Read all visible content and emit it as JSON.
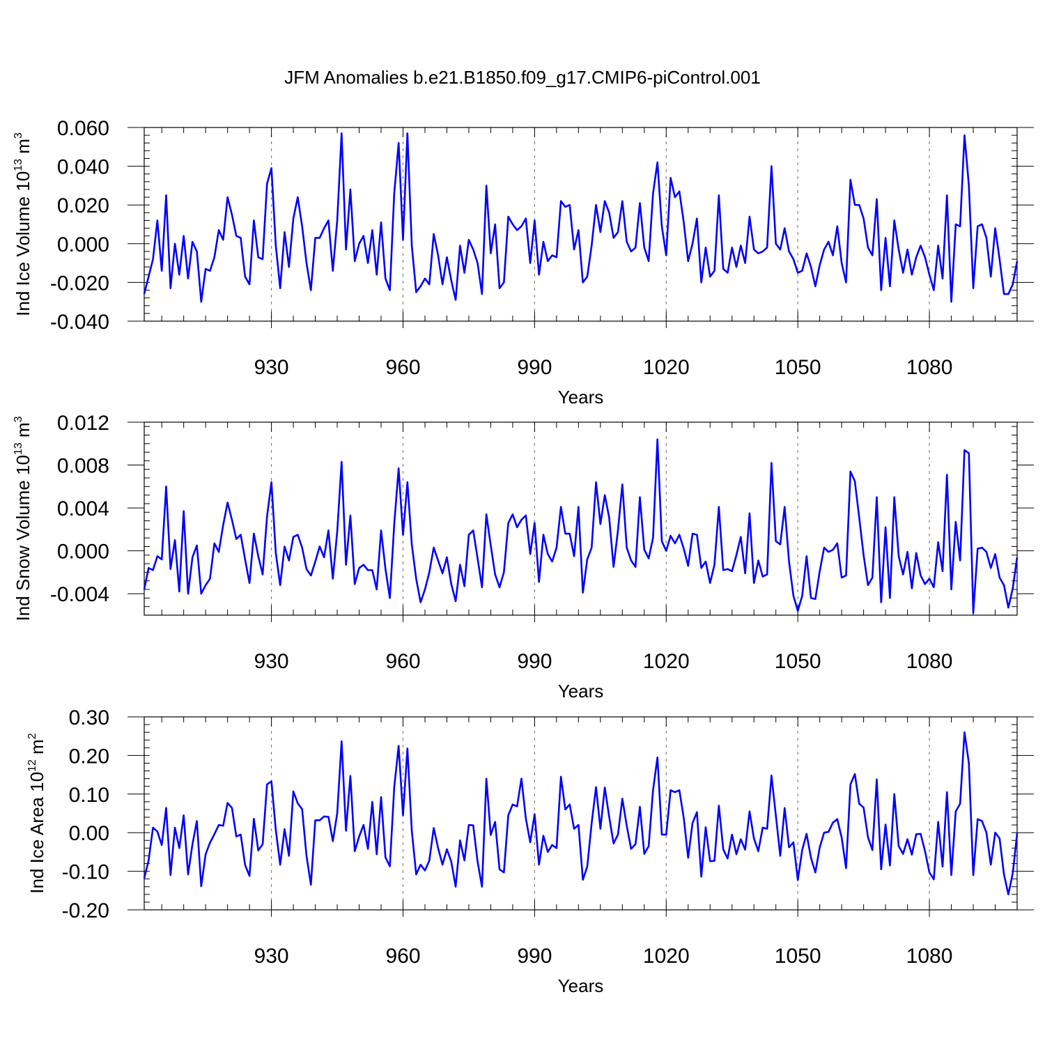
{
  "title": "JFM Anomalies b.e21.B1850.f09_g17.CMIP6-piControl.001",
  "chart_data": [
    {
      "type": "line",
      "ylabel_main": "Ind Ice Volume 10",
      "ylabel_exp": "13",
      "ylabel_unit": " m",
      "ylabel_unit_exp": "3",
      "xlabel": "Years",
      "xlim": [
        901,
        1100
      ],
      "ylim": [
        -0.04,
        0.06
      ],
      "yticks": [
        -0.04,
        -0.02,
        0.0,
        0.02,
        0.04,
        0.06
      ],
      "ytick_labels": [
        "-0.040",
        "-0.020",
        "0.000",
        "0.020",
        "0.040",
        "0.060"
      ],
      "xticks": [
        930,
        960,
        990,
        1020,
        1050,
        1080
      ],
      "xtick_labels": [
        "930",
        "960",
        "990",
        "1020",
        "1050",
        "1080"
      ],
      "x_start": 901,
      "line_color": "#0000ff",
      "values": [
        -0.026,
        -0.017,
        -0.008,
        0.012,
        -0.014,
        0.025,
        -0.023,
        0.0,
        -0.016,
        0.004,
        -0.018,
        0.001,
        -0.004,
        -0.03,
        -0.013,
        -0.014,
        -0.007,
        0.007,
        0.002,
        0.024,
        0.015,
        0.004,
        0.003,
        -0.017,
        -0.021,
        0.012,
        -0.007,
        -0.008,
        0.031,
        0.039,
        -0.001,
        -0.023,
        0.006,
        -0.012,
        0.013,
        0.024,
        0.009,
        -0.01,
        -0.024,
        0.003,
        0.003,
        0.008,
        0.012,
        -0.014,
        0.012,
        0.057,
        -0.003,
        0.028,
        -0.009,
        0.0,
        0.004,
        -0.01,
        0.007,
        -0.016,
        0.011,
        -0.018,
        -0.024,
        0.026,
        0.052,
        0.002,
        0.057,
        -0.001,
        -0.025,
        -0.022,
        -0.018,
        -0.021,
        0.005,
        -0.006,
        -0.021,
        -0.007,
        -0.019,
        -0.029,
        -0.001,
        -0.015,
        0.002,
        -0.003,
        -0.01,
        -0.026,
        0.03,
        -0.005,
        0.01,
        -0.023,
        -0.02,
        0.014,
        0.01,
        0.007,
        0.009,
        0.013,
        -0.01,
        0.012,
        -0.016,
        0.001,
        -0.009,
        -0.006,
        -0.007,
        0.022,
        0.019,
        0.02,
        -0.003,
        0.007,
        -0.02,
        -0.017,
        -0.001,
        0.02,
        0.006,
        0.022,
        0.016,
        0.003,
        0.006,
        0.022,
        0.001,
        -0.004,
        -0.002,
        0.021,
        -0.002,
        -0.009,
        0.026,
        0.042,
        0.009,
        -0.006,
        0.034,
        0.024,
        0.027,
        0.011,
        -0.009,
        0.0,
        0.013,
        -0.02,
        -0.002,
        -0.017,
        -0.014,
        0.025,
        -0.013,
        -0.015,
        -0.002,
        -0.012,
        -0.001,
        -0.01,
        0.014,
        -0.003,
        -0.005,
        -0.004,
        -0.002,
        0.04,
        0.0,
        -0.003,
        0.008,
        -0.004,
        -0.008,
        -0.015,
        -0.014,
        -0.005,
        -0.012,
        -0.022,
        -0.011,
        -0.003,
        0.001,
        -0.006,
        0.009,
        -0.01,
        -0.02,
        0.033,
        0.02,
        0.02,
        0.013,
        -0.002,
        -0.006,
        0.023,
        -0.024,
        0.003,
        -0.022,
        0.012,
        -0.003,
        -0.015,
        -0.003,
        -0.016,
        -0.007,
        -0.001,
        -0.007,
        -0.016,
        -0.024,
        -0.001,
        -0.018,
        0.025,
        -0.03,
        0.01,
        0.009,
        0.056,
        0.03,
        -0.023,
        0.009,
        0.01,
        0.003,
        -0.017,
        0.008,
        -0.008,
        -0.026,
        -0.026,
        -0.021,
        -0.009
      ]
    },
    {
      "type": "line",
      "ylabel_main": "Ind Snow Volume 10",
      "ylabel_exp": "13",
      "ylabel_unit": " m",
      "ylabel_unit_exp": "3",
      "xlabel": "Years",
      "xlim": [
        901,
        1100
      ],
      "ylim": [
        -0.006,
        0.012
      ],
      "yticks": [
        -0.004,
        0.0,
        0.004,
        0.008,
        0.012
      ],
      "ytick_labels": [
        "-0.004",
        "0.000",
        "0.004",
        "0.008",
        "0.012"
      ],
      "xticks": [
        930,
        960,
        990,
        1020,
        1050,
        1080
      ],
      "xtick_labels": [
        "930",
        "960",
        "990",
        "1020",
        "1050",
        "1080"
      ],
      "x_start": 901,
      "line_color": "#0000ff",
      "values": [
        -0.0036,
        -0.0016,
        -0.0018,
        -0.0005,
        -0.0008,
        0.006,
        -0.0017,
        0.001,
        -0.0038,
        0.0037,
        -0.004,
        -0.0006,
        0.0005,
        -0.004,
        -0.0032,
        -0.0026,
        0.0007,
        -0.0001,
        0.0024,
        0.0045,
        0.0029,
        0.0011,
        0.0015,
        -0.0008,
        -0.003,
        0.0016,
        -0.0005,
        -0.0022,
        0.0032,
        0.0064,
        -0.0002,
        -0.0032,
        0.0004,
        -0.0009,
        0.0013,
        0.0015,
        0.0003,
        -0.0017,
        -0.0023,
        -0.001,
        0.0004,
        -0.0006,
        0.0019,
        -0.0026,
        0.0018,
        0.0083,
        -0.0013,
        0.0033,
        -0.0031,
        -0.0016,
        -0.0013,
        -0.0018,
        -0.0018,
        -0.0036,
        0.0019,
        -0.0017,
        -0.0044,
        0.0025,
        0.0077,
        0.0015,
        0.0064,
        0.0006,
        -0.0026,
        -0.0048,
        -0.0036,
        -0.002,
        0.0003,
        -0.0009,
        -0.0021,
        -0.0006,
        -0.0031,
        -0.0047,
        -0.0013,
        -0.0033,
        0.0015,
        0.0019,
        -0.0007,
        -0.0034,
        0.0034,
        0.0005,
        -0.0022,
        -0.0034,
        -0.002,
        0.0026,
        0.0034,
        0.0022,
        0.0029,
        0.0033,
        -0.0003,
        0.0026,
        -0.0029,
        0.0015,
        -0.0003,
        -0.001,
        0.0003,
        0.0041,
        0.0016,
        0.0016,
        -0.0005,
        0.0041,
        -0.0039,
        -0.0008,
        0.0003,
        0.0064,
        0.0025,
        0.0052,
        0.0031,
        -0.0015,
        0.0019,
        0.0062,
        0.0003,
        -0.0009,
        -0.0015,
        0.005,
        0.0001,
        -0.0007,
        0.0012,
        0.0104,
        0.0009,
        0.0,
        0.0014,
        0.0007,
        0.0015,
        0.0002,
        -0.0014,
        0.0016,
        0.0015,
        -0.0016,
        -0.001,
        -0.003,
        -0.0013,
        0.0041,
        -0.0018,
        -0.0017,
        -0.0019,
        -0.0004,
        0.0013,
        -0.0021,
        0.0035,
        -0.003,
        -0.0009,
        -0.0024,
        -0.0022,
        0.0082,
        0.0009,
        0.0006,
        0.0041,
        -0.001,
        -0.0042,
        -0.0056,
        -0.0042,
        -0.0005,
        -0.0044,
        -0.0045,
        -0.0019,
        0.0003,
        -0.0001,
        0.0001,
        0.0007,
        -0.0025,
        -0.0023,
        0.0074,
        0.0065,
        0.0031,
        -0.0004,
        -0.0032,
        -0.0025,
        0.005,
        -0.0048,
        0.0022,
        -0.0044,
        0.005,
        -0.0005,
        -0.0022,
        -0.0001,
        -0.0035,
        -0.0002,
        -0.0023,
        -0.0031,
        -0.0026,
        -0.0034,
        0.0008,
        -0.0019,
        0.0071,
        -0.0036,
        0.0027,
        -0.0009,
        0.0094,
        0.0091,
        -0.0058,
        0.0002,
        0.0003,
        -0.0001,
        -0.0016,
        -0.0003,
        -0.0025,
        -0.0032,
        -0.0053,
        -0.0035,
        -0.0006
      ]
    },
    {
      "type": "line",
      "ylabel_main": "Ind Ice Area 10",
      "ylabel_exp": "12",
      "ylabel_unit": " m",
      "ylabel_unit_exp": "2",
      "xlabel": "Years",
      "xlim": [
        901,
        1100
      ],
      "ylim": [
        -0.2,
        0.3
      ],
      "yticks": [
        -0.2,
        -0.1,
        0.0,
        0.1,
        0.2,
        0.3
      ],
      "ytick_labels": [
        "-0.20",
        "-0.10",
        "0.00",
        "0.10",
        "0.20",
        "0.30"
      ],
      "xticks": [
        930,
        960,
        990,
        1020,
        1050,
        1080
      ],
      "xtick_labels": [
        "930",
        "960",
        "990",
        "1020",
        "1050",
        "1080"
      ],
      "x_start": 901,
      "line_color": "#0000ff",
      "values": [
        -0.118,
        -0.072,
        0.013,
        0.003,
        -0.032,
        0.064,
        -0.11,
        0.013,
        -0.04,
        0.045,
        -0.108,
        -0.03,
        0.03,
        -0.139,
        -0.056,
        -0.026,
        -0.004,
        0.02,
        0.018,
        0.077,
        0.064,
        -0.01,
        -0.005,
        -0.084,
        -0.112,
        0.036,
        -0.046,
        -0.03,
        0.125,
        0.133,
        0.007,
        -0.083,
        0.009,
        -0.06,
        0.107,
        0.076,
        0.061,
        -0.06,
        -0.135,
        0.032,
        0.032,
        0.042,
        0.041,
        -0.022,
        0.05,
        0.237,
        0.005,
        0.147,
        -0.048,
        -0.01,
        0.02,
        -0.042,
        0.08,
        -0.056,
        0.092,
        -0.064,
        -0.087,
        0.118,
        0.225,
        0.045,
        0.218,
        0.005,
        -0.108,
        -0.083,
        -0.098,
        -0.072,
        0.012,
        -0.04,
        -0.083,
        -0.043,
        -0.075,
        -0.14,
        -0.02,
        -0.072,
        0.02,
        0.019,
        -0.075,
        -0.14,
        0.14,
        -0.006,
        0.028,
        -0.095,
        -0.103,
        0.045,
        0.073,
        0.068,
        0.14,
        0.037,
        -0.025,
        0.048,
        -0.083,
        -0.008,
        -0.05,
        -0.032,
        -0.04,
        0.145,
        0.06,
        0.073,
        0.01,
        0.02,
        -0.122,
        -0.088,
        0.024,
        0.118,
        0.01,
        0.117,
        0.041,
        -0.028,
        -0.005,
        0.088,
        0.018,
        -0.042,
        -0.03,
        0.067,
        -0.055,
        -0.035,
        0.11,
        0.195,
        -0.005,
        -0.005,
        0.11,
        0.105,
        0.11,
        0.038,
        -0.065,
        0.025,
        0.053,
        -0.114,
        0.014,
        -0.074,
        -0.073,
        0.07,
        -0.043,
        -0.067,
        -0.005,
        -0.056,
        -0.017,
        -0.044,
        0.055,
        -0.015,
        -0.048,
        0.013,
        0.01,
        0.148,
        0.044,
        -0.06,
        0.064,
        -0.038,
        -0.025,
        -0.123,
        -0.045,
        -0.003,
        -0.065,
        -0.103,
        -0.038,
        0.0,
        0.002,
        0.026,
        0.035,
        -0.013,
        -0.092,
        0.125,
        0.152,
        0.075,
        0.065,
        -0.012,
        -0.045,
        0.138,
        -0.095,
        0.021,
        -0.085,
        0.1,
        -0.035,
        -0.055,
        -0.017,
        -0.057,
        -0.004,
        -0.003,
        -0.048,
        -0.103,
        -0.121,
        0.028,
        -0.088,
        0.105,
        -0.11,
        0.055,
        0.075,
        0.26,
        0.18,
        -0.11,
        0.035,
        0.03,
        0.0,
        -0.083,
        0.0,
        -0.015,
        -0.108,
        -0.16,
        -0.105,
        -0.002
      ]
    }
  ]
}
